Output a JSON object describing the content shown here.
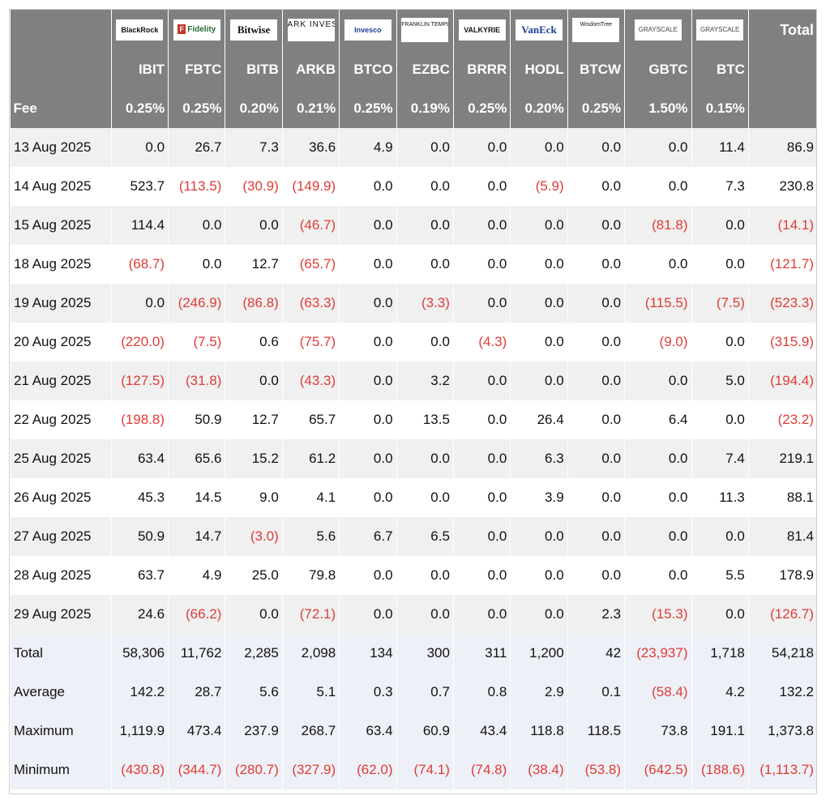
{
  "issuers": [
    "BlackRock",
    "Fidelity",
    "Bitwise",
    "ARK INVEST",
    "Invesco",
    "FRANKLIN TEMPLETON",
    "VALKYRIE",
    "VanEck",
    "WisdomTree",
    "GRAYSCALE",
    "GRAYSCALE"
  ],
  "total_header": "Total",
  "tickers": [
    "IBIT",
    "FBTC",
    "BITB",
    "ARKB",
    "BTCO",
    "EZBC",
    "BRRR",
    "HODL",
    "BTCW",
    "GBTC",
    "BTC"
  ],
  "fee_label": "Fee",
  "fees": [
    "0.25%",
    "0.25%",
    "0.20%",
    "0.21%",
    "0.25%",
    "0.19%",
    "0.25%",
    "0.20%",
    "0.25%",
    "1.50%",
    "0.15%"
  ],
  "rows": [
    {
      "date": "13 Aug 2025",
      "values": [
        "0.0",
        "26.7",
        "7.3",
        "36.6",
        "4.9",
        "0.0",
        "0.0",
        "0.0",
        "0.0",
        "0.0",
        "11.4"
      ],
      "total": "86.9"
    },
    {
      "date": "14 Aug 2025",
      "values": [
        "523.7",
        "(113.5)",
        "(30.9)",
        "(149.9)",
        "0.0",
        "0.0",
        "0.0",
        "(5.9)",
        "0.0",
        "0.0",
        "7.3"
      ],
      "total": "230.8"
    },
    {
      "date": "15 Aug 2025",
      "values": [
        "114.4",
        "0.0",
        "0.0",
        "(46.7)",
        "0.0",
        "0.0",
        "0.0",
        "0.0",
        "0.0",
        "(81.8)",
        "0.0"
      ],
      "total": "(14.1)"
    },
    {
      "date": "18 Aug 2025",
      "values": [
        "(68.7)",
        "0.0",
        "12.7",
        "(65.7)",
        "0.0",
        "0.0",
        "0.0",
        "0.0",
        "0.0",
        "0.0",
        "0.0"
      ],
      "total": "(121.7)"
    },
    {
      "date": "19 Aug 2025",
      "values": [
        "0.0",
        "(246.9)",
        "(86.8)",
        "(63.3)",
        "0.0",
        "(3.3)",
        "0.0",
        "0.0",
        "0.0",
        "(115.5)",
        "(7.5)"
      ],
      "total": "(523.3)"
    },
    {
      "date": "20 Aug 2025",
      "values": [
        "(220.0)",
        "(7.5)",
        "0.6",
        "(75.7)",
        "0.0",
        "0.0",
        "(4.3)",
        "0.0",
        "0.0",
        "(9.0)",
        "0.0"
      ],
      "total": "(315.9)"
    },
    {
      "date": "21 Aug 2025",
      "values": [
        "(127.5)",
        "(31.8)",
        "0.0",
        "(43.3)",
        "0.0",
        "3.2",
        "0.0",
        "0.0",
        "0.0",
        "0.0",
        "5.0"
      ],
      "total": "(194.4)"
    },
    {
      "date": "22 Aug 2025",
      "values": [
        "(198.8)",
        "50.9",
        "12.7",
        "65.7",
        "0.0",
        "13.5",
        "0.0",
        "26.4",
        "0.0",
        "6.4",
        "0.0"
      ],
      "total": "(23.2)"
    },
    {
      "date": "25 Aug 2025",
      "values": [
        "63.4",
        "65.6",
        "15.2",
        "61.2",
        "0.0",
        "0.0",
        "0.0",
        "6.3",
        "0.0",
        "0.0",
        "7.4"
      ],
      "total": "219.1"
    },
    {
      "date": "26 Aug 2025",
      "values": [
        "45.3",
        "14.5",
        "9.0",
        "4.1",
        "0.0",
        "0.0",
        "0.0",
        "3.9",
        "0.0",
        "0.0",
        "11.3"
      ],
      "total": "88.1"
    },
    {
      "date": "27 Aug 2025",
      "values": [
        "50.9",
        "14.7",
        "(3.0)",
        "5.6",
        "6.7",
        "6.5",
        "0.0",
        "0.0",
        "0.0",
        "0.0",
        "0.0"
      ],
      "total": "81.4"
    },
    {
      "date": "28 Aug 2025",
      "values": [
        "63.7",
        "4.9",
        "25.0",
        "79.8",
        "0.0",
        "0.0",
        "0.0",
        "0.0",
        "0.0",
        "0.0",
        "5.5"
      ],
      "total": "178.9"
    },
    {
      "date": "29 Aug 2025",
      "values": [
        "24.6",
        "(66.2)",
        "0.0",
        "(72.1)",
        "0.0",
        "0.0",
        "0.0",
        "0.0",
        "2.3",
        "(15.3)",
        "0.0"
      ],
      "total": "(126.7)"
    }
  ],
  "stats": [
    {
      "label": "Total",
      "values": [
        "58,306",
        "11,762",
        "2,285",
        "2,098",
        "134",
        "300",
        "311",
        "1,200",
        "42",
        "(23,937)",
        "1,718"
      ],
      "total": "54,218"
    },
    {
      "label": "Average",
      "values": [
        "142.2",
        "28.7",
        "5.6",
        "5.1",
        "0.3",
        "0.7",
        "0.8",
        "2.9",
        "0.1",
        "(58.4)",
        "4.2"
      ],
      "total": "132.2"
    },
    {
      "label": "Maximum",
      "values": [
        "1,119.9",
        "473.4",
        "237.9",
        "268.7",
        "63.4",
        "60.9",
        "43.4",
        "118.8",
        "118.5",
        "73.8",
        "191.1"
      ],
      "total": "1,373.8"
    },
    {
      "label": "Minimum",
      "values": [
        "(430.8)",
        "(344.7)",
        "(280.7)",
        "(327.9)",
        "(62.0)",
        "(74.1)",
        "(74.8)",
        "(38.4)",
        "(53.8)",
        "(642.5)",
        "(188.6)"
      ],
      "total": "(1,113.7)"
    }
  ],
  "colors": {
    "header_bg": "#808080",
    "negative": "#e03b36",
    "stat_bg": "#eef0f7",
    "stripe": "#f0f0f0"
  }
}
